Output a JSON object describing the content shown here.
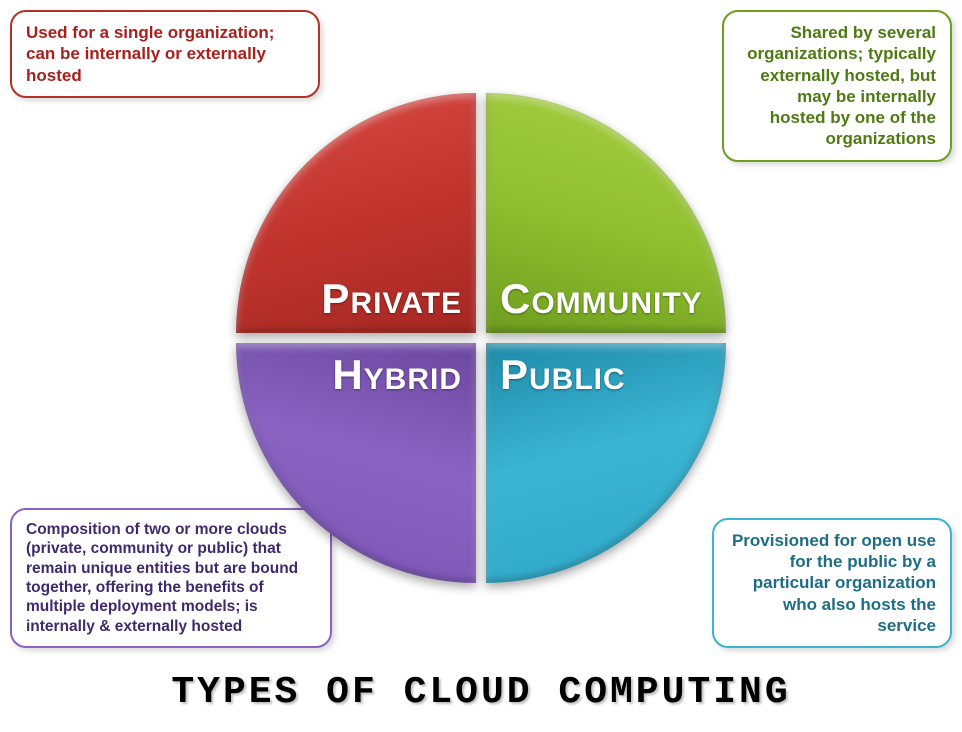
{
  "title": "TYPES OF CLOUD COMPUTING",
  "quadrants": {
    "tl": {
      "firstLetter": "P",
      "rest": "RIVATE",
      "bg": "linear-gradient(165deg, #d84b45 0%, #c0332d 55%, #a52823 100%)",
      "solid": "#c0332d",
      "callout": "Used for a single organization; can be internally or externally hosted",
      "calloutColor": "#a8201c",
      "borderColor": "#b53127"
    },
    "tr": {
      "firstLetter": "C",
      "rest": "OMMUNITY",
      "bg": "linear-gradient(195deg, #a8cf44 0%, #8fbf2e 55%, #6e9d1f 100%)",
      "solid": "#8fbf2e",
      "callout": "Shared by several organizations; typically externally hosted, but may be internally hosted by one of the organizations",
      "calloutColor": "#4f7a12",
      "borderColor": "#6e9d1f"
    },
    "bl": {
      "firstLetter": "H",
      "rest": "YBRID",
      "bg": "linear-gradient(15deg, #7a54b5 0%, #8a63c2 55%, #6b479f 100%)",
      "solid": "#8a63c2",
      "callout": "Composition of two or more clouds (private, community or public) that remain unique entities but are bound together, offering the benefits of multiple deployment models; is internally & externally hosted",
      "calloutColor": "#3f2a6e",
      "borderColor": "#8a63c2"
    },
    "br": {
      "firstLetter": "P",
      "rest": "UBLIC",
      "bg": "linear-gradient(345deg, #2fa6c6 0%, #3bb5d4 55%, #1e8aa8 100%)",
      "solid": "#3bb5d4",
      "callout": "Provisioned for open use for the public by a particular organization who also hosts the service",
      "calloutColor": "#1d6d87",
      "borderColor": "#3bb5d4"
    }
  },
  "style": {
    "circleDiameter": 490,
    "gap": 10,
    "labelColor": "#ffffff",
    "background": "#ffffff",
    "titleFontSize": 38,
    "calloutRadius": 16
  }
}
